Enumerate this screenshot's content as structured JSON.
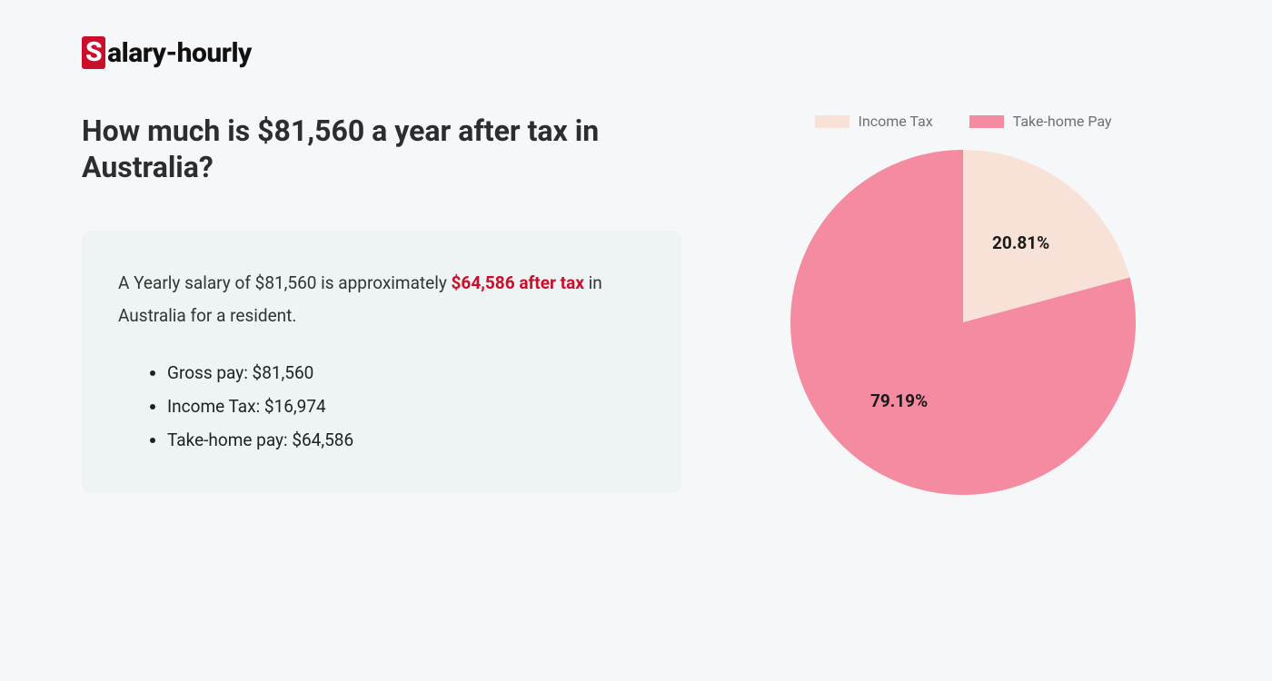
{
  "logo": {
    "badge_letter": "S",
    "rest": "alary-hourly"
  },
  "title": "How much is $81,560 a year after tax in Australia?",
  "summary": {
    "prefix": "A Yearly salary of $81,560 is approximately ",
    "highlight": "$64,586 after tax",
    "suffix": " in Australia for a resident.",
    "bullets": [
      "Gross pay: $81,560",
      "Income Tax: $16,974",
      "Take-home pay: $64,586"
    ]
  },
  "chart": {
    "type": "pie",
    "background_color": "#f6f7f9",
    "radius": 190,
    "slices": [
      {
        "name": "Income Tax",
        "value": 20.81,
        "label": "20.81%",
        "color": "#f8e1d7"
      },
      {
        "name": "Take-home Pay",
        "value": 79.19,
        "label": "79.19%",
        "color": "#f48ba0"
      }
    ],
    "label_fontsize": 19,
    "label_color": "#1a1a1a",
    "legend": {
      "swatch_w": 38,
      "swatch_h": 14,
      "font_size": 16,
      "font_color": "#6b6f76"
    },
    "start_angle_deg": -90
  },
  "box": {
    "bg": "#eef3f3",
    "radius": 10
  }
}
